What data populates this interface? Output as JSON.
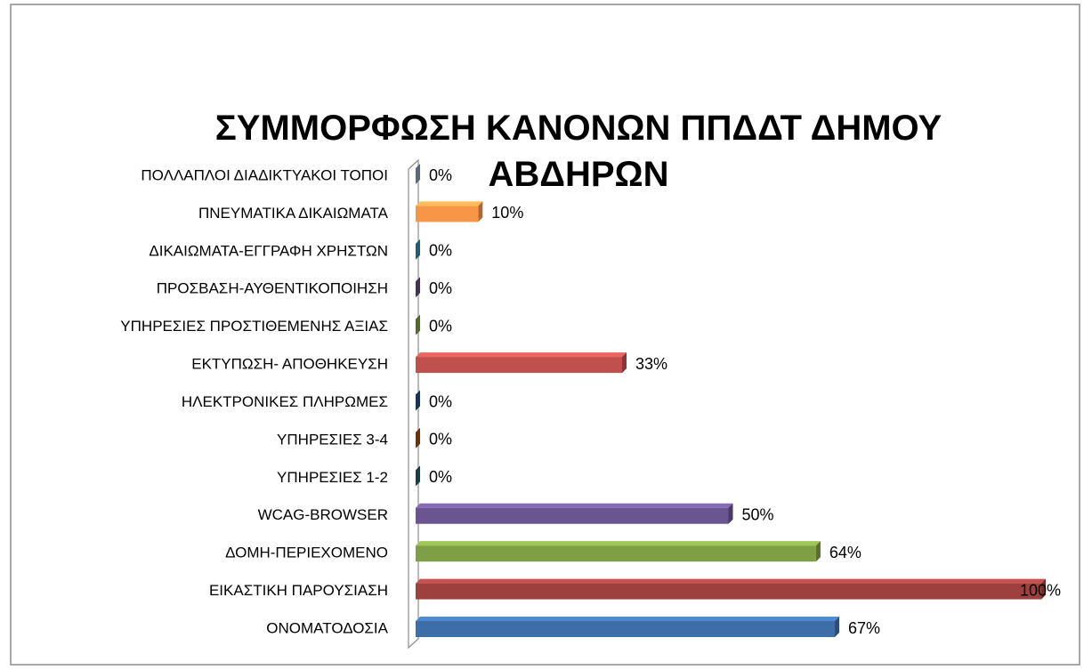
{
  "chart_data": {
    "type": "bar",
    "orientation": "horizontal",
    "title": "ΣΥΜΜΟΡΦΩΣΗ ΚΑΝΟΝΩΝ ΠΠΔΔΤ  ΔΗΜΟΥ ΑΒΔΗΡΩΝ",
    "categories": [
      "ΠΟΛΛΑΠΛΟΙ ΔΙΑΔΙΚΤΥΑΚΟΙ ΤΟΠΟΙ",
      "ΠΝΕΥΜΑΤΙΚΑ ΔΙΚΑΙΩΜΑΤΑ",
      "ΔΙΚΑΙΩΜΑΤΑ-ΕΓΓΡΑΦΗ ΧΡΗΣΤΩΝ",
      "ΠΡΟΣΒΑΣΗ-ΑΥΘΕΝΤΙΚΟΠΟΙΗΣΗ",
      "ΥΠΗΡΕΣΙΕΣ ΠΡΟΣΤΙΘΕΜΕΝΗΣ ΑΞΙΑΣ",
      "ΕΚΤΥΠΩΣΗ- ΑΠΟΘΗΚΕΥΣΗ",
      "ΗΛΕΚΤΡΟΝΙΚΕΣ ΠΛΗΡΩΜΕΣ",
      "ΥΠΗΡΕΣΙΕΣ 3-4",
      "ΥΠΗΡΕΣΙΕΣ 1-2",
      "WCAG-BROWSER",
      "ΔΟΜΗ-ΠΕΡΙΕΧΟΜΕΝΟ",
      "ΕΙΚΑΣΤΙΚΗ ΠΑΡΟΥΣΙΑΣΗ",
      "ΟΝΟΜΑΤΟΔΟΣΙΑ"
    ],
    "values": [
      0,
      10,
      0,
      0,
      0,
      33,
      0,
      0,
      0,
      50,
      64,
      100,
      67
    ],
    "value_labels": [
      "0%",
      "10%",
      "0%",
      "0%",
      "0%",
      "33%",
      "0%",
      "0%",
      "0%",
      "50%",
      "64%",
      "100%",
      "67%"
    ],
    "colors": [
      "#8093b3",
      "#f79646",
      "#31859c",
      "#604a7b",
      "#77933c",
      "#c0504d",
      "#1f497d",
      "#984807",
      "#215967",
      "#6a5590",
      "#7f9f45",
      "#9e413e",
      "#3e6ea8"
    ],
    "xlim": [
      0,
      100
    ]
  }
}
